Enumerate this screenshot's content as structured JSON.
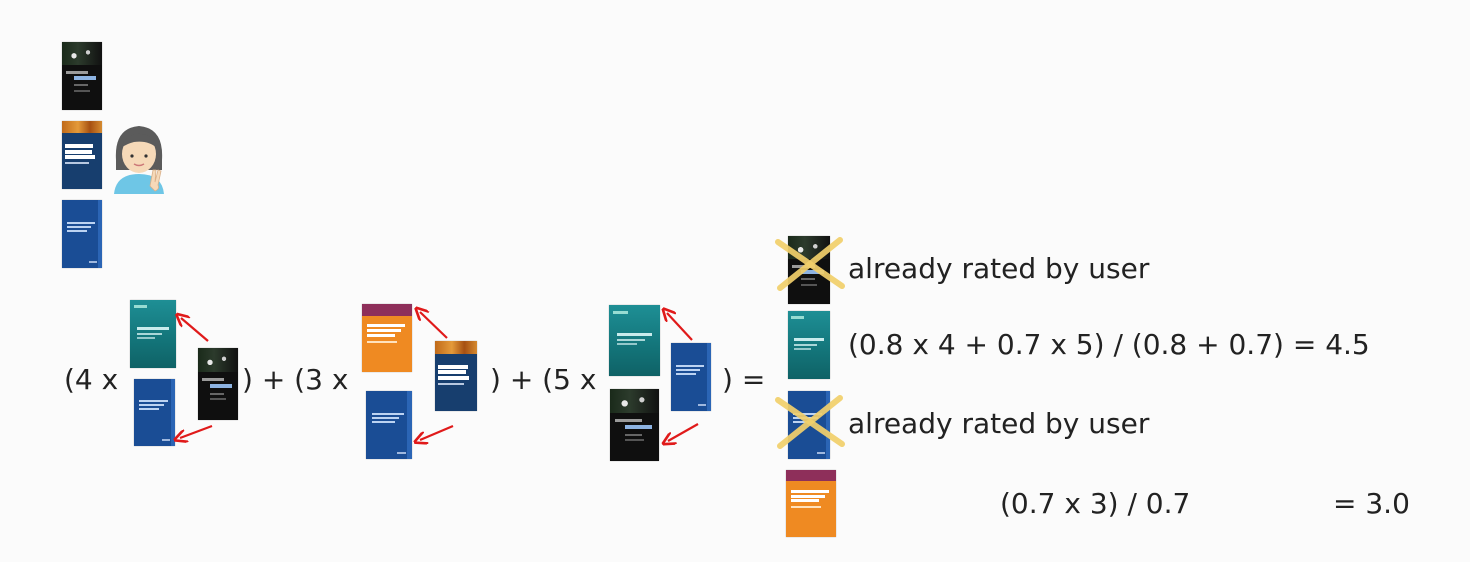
{
  "formula": {
    "open1": "(4 x",
    "close1_open2": ") + (3 x",
    "close2_open3": ") + (5 x",
    "close3_eq": ") ="
  },
  "results": [
    {
      "label": "already rated by user",
      "crossed": true
    },
    {
      "label": "(0.8 x 4 + 0.7 x 5) / (0.8 + 0.7) = 4.5",
      "crossed": false
    },
    {
      "label": "already rated by user",
      "crossed": true
    },
    {
      "label_left": "(0.7 x 3) / 0.7",
      "label_right": "= 3.0",
      "crossed": false
    }
  ],
  "colors": {
    "arrow": "#e01a1a",
    "cross": "#f2d06b"
  },
  "icons": [
    "user-avatar-icon",
    "red-arrow-icon",
    "cross-out-icon"
  ]
}
